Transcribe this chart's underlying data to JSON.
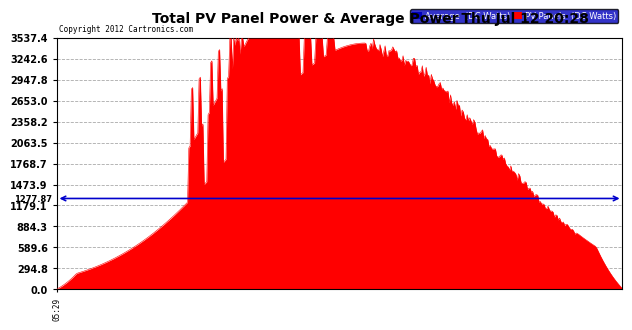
{
  "title": "Total PV Panel Power & Average Power Thu Jul 12 20:28",
  "copyright": "Copyright 2012 Cartronics.com",
  "legend_labels": [
    "Average  (DC Watts)",
    "PV Panels  (DC Watts)"
  ],
  "legend_colors": [
    "#0000bb",
    "#ff0000"
  ],
  "ymax": 3537.4,
  "ymin": 0.0,
  "yticks": [
    0.0,
    294.8,
    589.6,
    884.3,
    1179.1,
    1473.9,
    1768.7,
    2063.5,
    2358.2,
    2653.0,
    2947.8,
    3242.6,
    3537.4
  ],
  "avg_line_y": 1277.87,
  "avg_line_color": "#0000cc",
  "fill_color": "#ff0000",
  "plot_bg_color": "#ffffff",
  "grid_color": "#aaaaaa",
  "text_color": "#000000",
  "title_color": "#000000"
}
